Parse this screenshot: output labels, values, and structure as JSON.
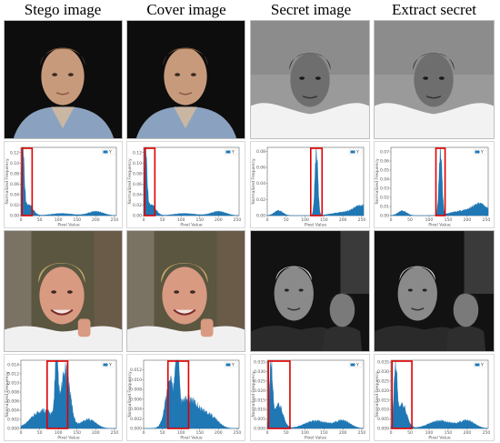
{
  "header": {
    "col1": "Stego image",
    "col2": "Cover image",
    "col3": "Secret image",
    "col4": "Extract secret"
  },
  "histogram": {
    "xlabel": "Pixel Value",
    "ylabel": "Normalized Frequency",
    "legend": "Y",
    "bar_color": "#1f77b4",
    "box_color": "#e00000"
  },
  "chart_data": [
    {
      "id": "r1c1",
      "type": "area",
      "xlim": [
        0,
        255
      ],
      "ylim": [
        0,
        0.13
      ],
      "yticks": [
        "0.00",
        "0.02",
        "0.04",
        "0.06",
        "0.08",
        "0.10",
        "0.12"
      ],
      "xticks": [
        "0",
        "50",
        "100",
        "150",
        "200",
        "250"
      ],
      "peaks": [
        [
          5,
          0.125
        ],
        [
          20,
          0.02
        ],
        [
          110,
          0.004
        ],
        [
          200,
          0.008
        ]
      ],
      "box": [
        3,
        30
      ]
    },
    {
      "id": "r1c2",
      "type": "area",
      "xlim": [
        0,
        255
      ],
      "ylim": [
        0,
        0.13
      ],
      "yticks": [
        "0.00",
        "0.02",
        "0.04",
        "0.06",
        "0.08",
        "0.10",
        "0.12"
      ],
      "xticks": [
        "0",
        "50",
        "100",
        "150",
        "200",
        "250"
      ],
      "peaks": [
        [
          5,
          0.125
        ],
        [
          20,
          0.02
        ],
        [
          110,
          0.004
        ],
        [
          200,
          0.008
        ]
      ],
      "box": [
        3,
        30
      ]
    },
    {
      "id": "r1c3",
      "type": "area",
      "xlim": [
        0,
        255
      ],
      "ylim": [
        0,
        0.085
      ],
      "yticks": [
        "0.00",
        "0.02",
        "0.04",
        "0.06",
        "0.08"
      ],
      "xticks": [
        "0",
        "50",
        "100",
        "150",
        "200",
        "250"
      ],
      "peaks": [
        [
          130,
          0.08
        ],
        [
          30,
          0.006
        ],
        [
          200,
          0.004
        ],
        [
          250,
          0.012
        ]
      ],
      "box": [
        115,
        145
      ]
    },
    {
      "id": "r1c4",
      "type": "area",
      "xlim": [
        0,
        255
      ],
      "ylim": [
        0,
        0.075
      ],
      "yticks": [
        "0.00",
        "0.01",
        "0.02",
        "0.03",
        "0.04",
        "0.05",
        "0.06",
        "0.07"
      ],
      "xticks": [
        "0",
        "50",
        "100",
        "150",
        "200",
        "250"
      ],
      "peaks": [
        [
          130,
          0.07
        ],
        [
          30,
          0.005
        ],
        [
          185,
          0.005
        ],
        [
          235,
          0.012
        ]
      ],
      "box": [
        118,
        142
      ]
    },
    {
      "id": "r2c1",
      "type": "area",
      "xlim": [
        0,
        255
      ],
      "ylim": [
        0,
        0.015
      ],
      "yticks": [
        "0.000",
        "0.002",
        "0.004",
        "0.006",
        "0.008",
        "0.010",
        "0.012",
        "0.014"
      ],
      "xticks": [
        "0",
        "50",
        "100",
        "150",
        "200",
        "250"
      ],
      "peaks": [
        [
          95,
          0.0145
        ],
        [
          120,
          0.012
        ],
        [
          60,
          0.004
        ],
        [
          180,
          0.002
        ]
      ],
      "box": [
        70,
        125
      ]
    },
    {
      "id": "r2c2",
      "type": "area",
      "xlim": [
        0,
        255
      ],
      "ylim": [
        0,
        0.014
      ],
      "yticks": [
        "0.000",
        "0.002",
        "0.004",
        "0.006",
        "0.008",
        "0.010",
        "0.012"
      ],
      "xticks": [
        "0",
        "50",
        "100",
        "150",
        "200",
        "250"
      ],
      "peaks": [
        [
          90,
          0.013
        ],
        [
          70,
          0.008
        ],
        [
          120,
          0.006
        ],
        [
          180,
          0.002
        ]
      ],
      "box": [
        65,
        120
      ]
    },
    {
      "id": "r2c3",
      "type": "area",
      "xlim": [
        0,
        255
      ],
      "ylim": [
        0,
        0.036
      ],
      "yticks": [
        "0.000",
        "0.005",
        "0.010",
        "0.015",
        "0.020",
        "0.025",
        "0.030",
        "0.035"
      ],
      "xticks": [
        "0",
        "50",
        "100",
        "150",
        "200",
        "250"
      ],
      "peaks": [
        [
          10,
          0.034
        ],
        [
          30,
          0.012
        ],
        [
          130,
          0.004
        ],
        [
          200,
          0.004
        ]
      ],
      "box": [
        3,
        60
      ]
    },
    {
      "id": "r2c4",
      "type": "area",
      "xlim": [
        0,
        255
      ],
      "ylim": [
        0,
        0.036
      ],
      "yticks": [
        "0.000",
        "0.005",
        "0.010",
        "0.015",
        "0.020",
        "0.025",
        "0.030",
        "0.035"
      ],
      "xticks": [
        "0",
        "50",
        "100",
        "150",
        "200",
        "250"
      ],
      "peaks": [
        [
          12,
          0.033
        ],
        [
          30,
          0.012
        ],
        [
          130,
          0.004
        ],
        [
          200,
          0.004
        ]
      ],
      "box": [
        3,
        55
      ]
    }
  ]
}
